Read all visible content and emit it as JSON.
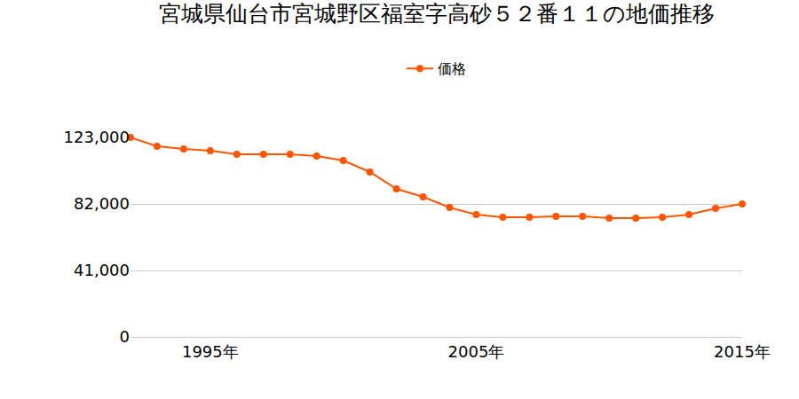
{
  "chart_data": {
    "type": "line",
    "title": "宮城県仙台市宮城野区福室字高砂５２番１１の地価推移",
    "x": [
      1992,
      1993,
      1994,
      1995,
      1996,
      1997,
      1998,
      1999,
      2000,
      2001,
      2002,
      2003,
      2004,
      2005,
      2006,
      2007,
      2008,
      2009,
      2010,
      2011,
      2012,
      2013,
      2014,
      2015
    ],
    "series": [
      {
        "name": "価格",
        "color": "#ff5500",
        "marker": "circle",
        "values": [
          123000,
          117500,
          115900,
          114800,
          112600,
          112600,
          112600,
          111500,
          108800,
          101700,
          91300,
          86400,
          79800,
          75400,
          73800,
          73800,
          74300,
          74300,
          73300,
          73300,
          73800,
          75400,
          79300,
          82000
        ]
      }
    ],
    "xlim": [
      1992,
      2015
    ],
    "xticks": [
      {
        "value": 1995,
        "label": "1995年"
      },
      {
        "value": 2005,
        "label": "2005年"
      },
      {
        "value": 2015,
        "label": "2015年"
      }
    ],
    "ylim": [
      0,
      123000
    ],
    "yticks": [
      0,
      {
        "value": 41000,
        "label": "41,000"
      },
      {
        "value": 82000,
        "label": "82,000"
      },
      {
        "value": 123000,
        "label": "123,000"
      }
    ],
    "grid": true,
    "legend": "top"
  }
}
